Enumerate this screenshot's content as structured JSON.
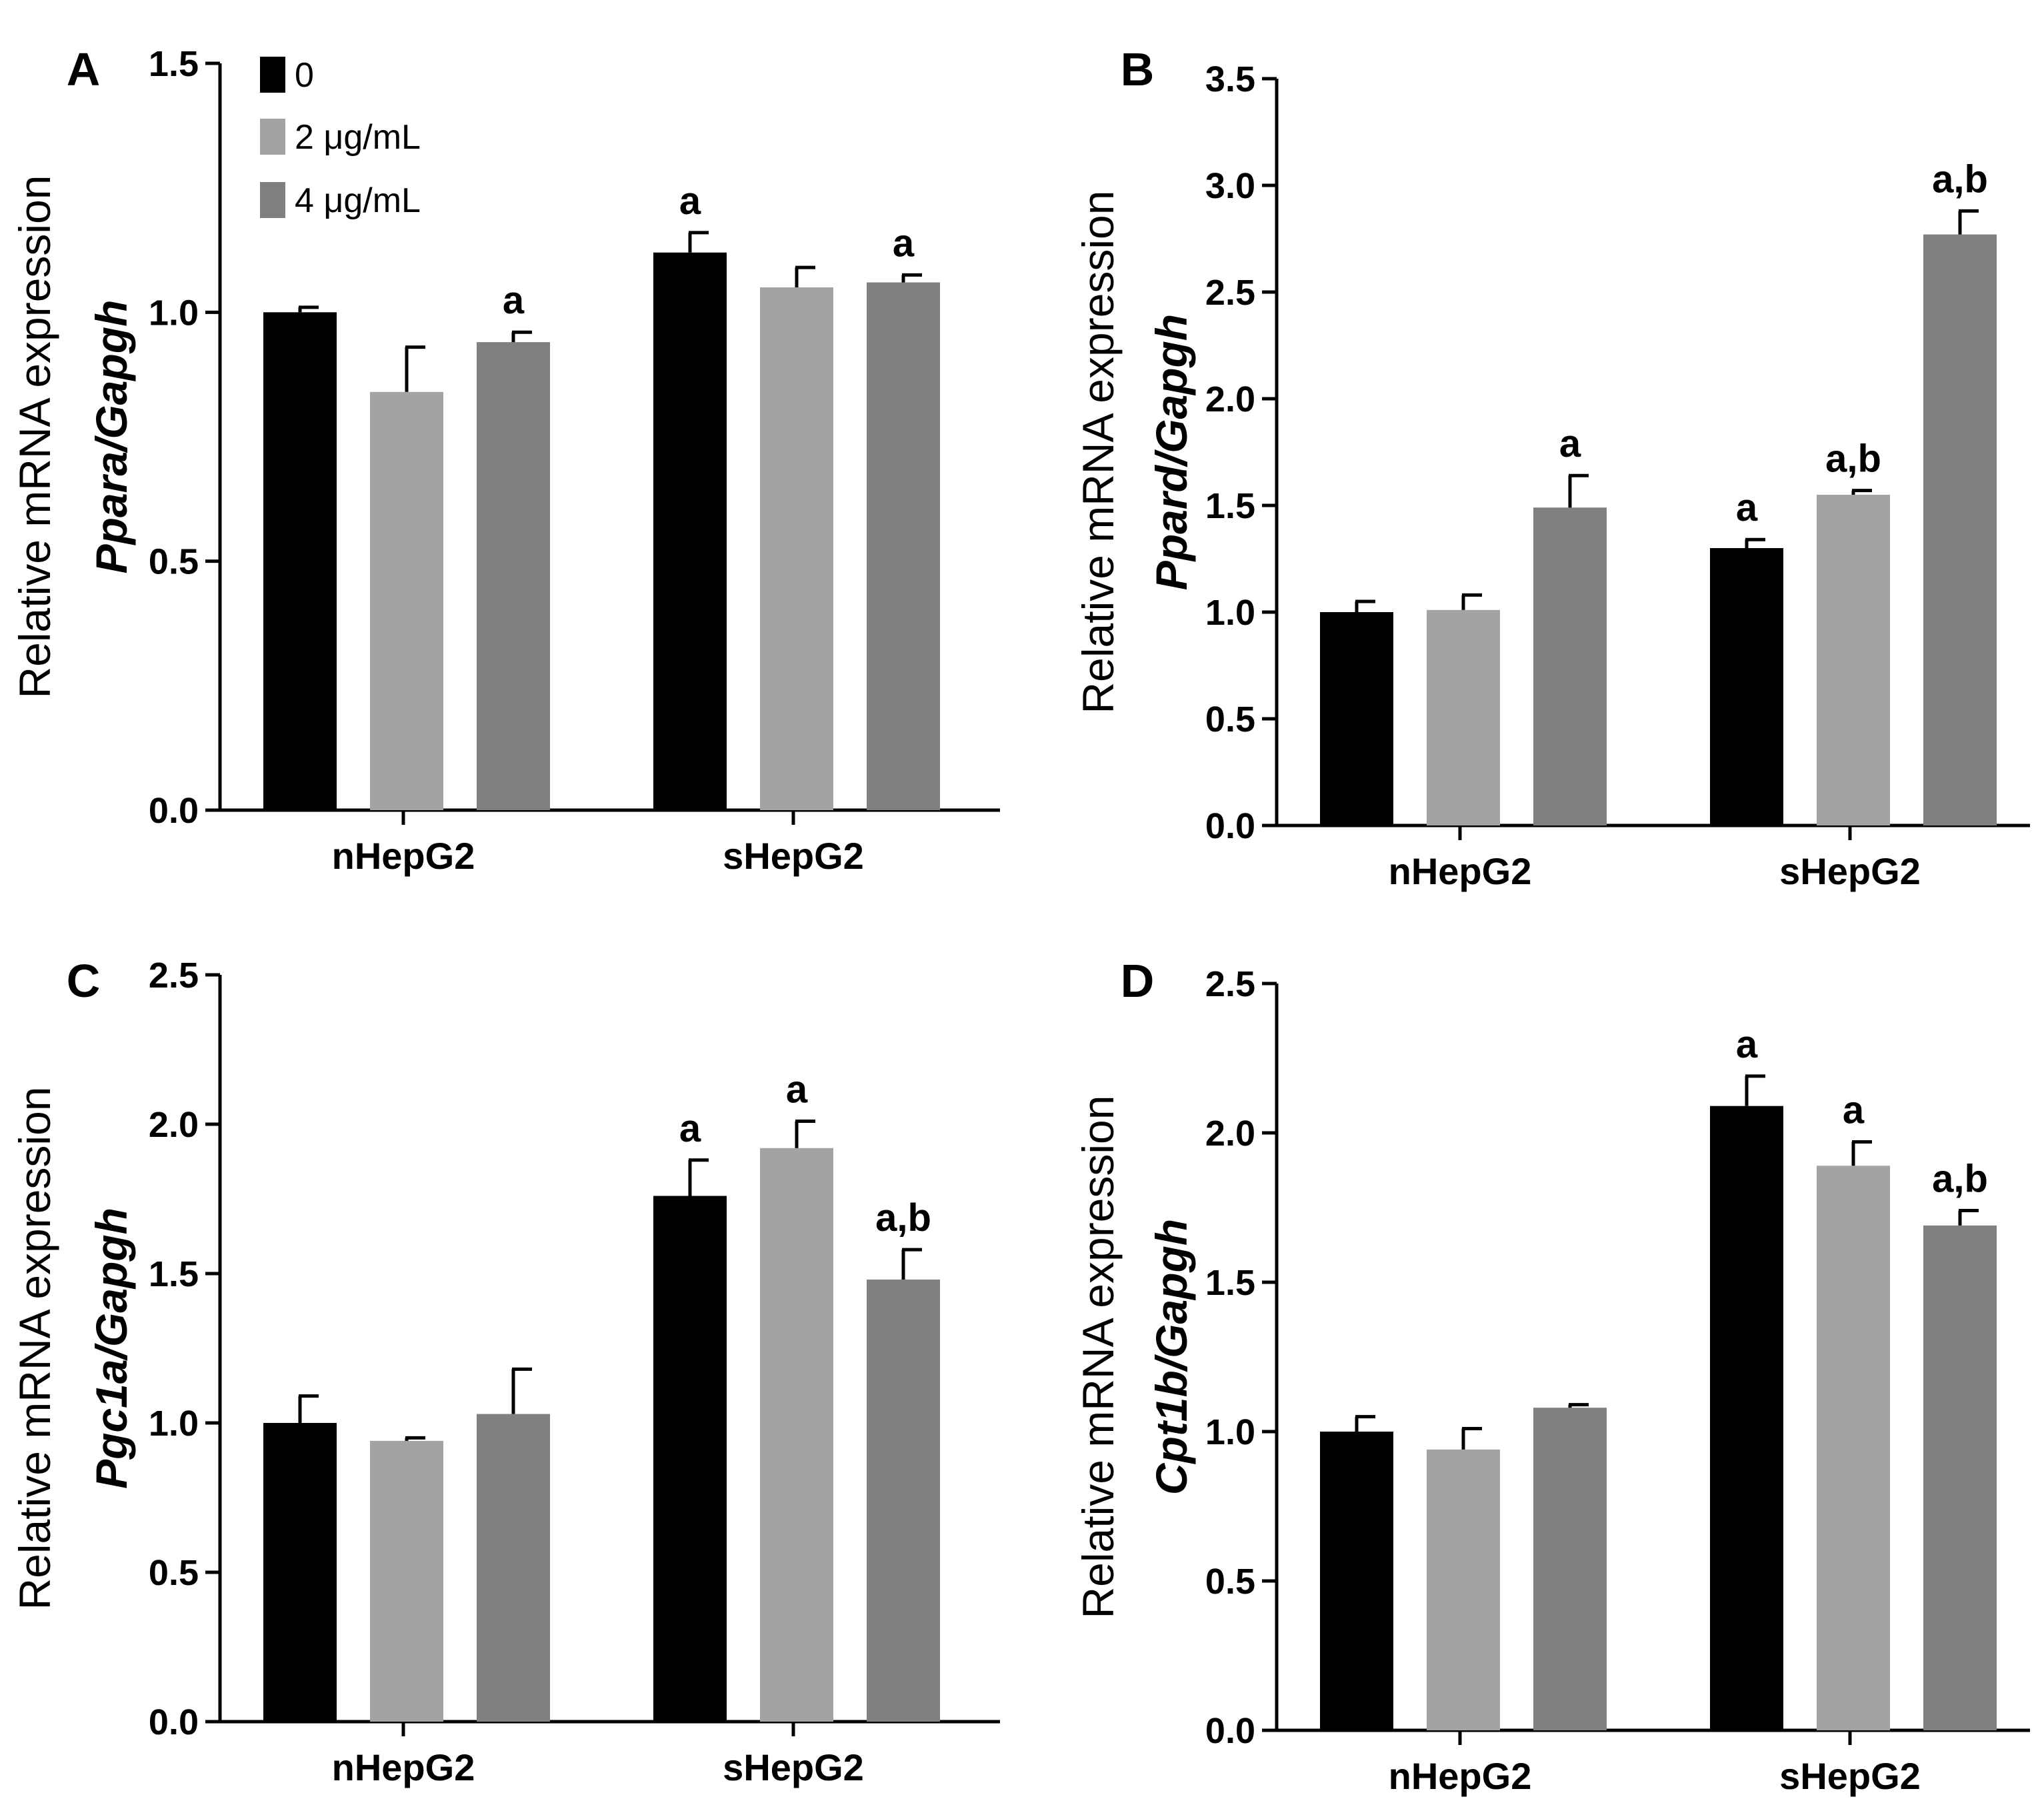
{
  "chart_data": [
    {
      "type": "bar",
      "panel": "A",
      "categories": [
        "nHepG2",
        "sHepG2"
      ],
      "series": [
        {
          "name": "0",
          "color": "#000000",
          "values": [
            1.0,
            1.12
          ],
          "errors": [
            0.01,
            0.04
          ],
          "sig": [
            "",
            "a"
          ]
        },
        {
          "name": "2 μg/mL",
          "color": "#a3a3a6",
          "values": [
            0.84,
            1.05
          ],
          "errors": [
            0.09,
            0.04
          ],
          "sig": [
            "",
            ""
          ]
        },
        {
          "name": "4 μg/mL",
          "color": "#808080",
          "values": [
            0.94,
            1.06
          ],
          "errors": [
            0.02,
            0.015
          ],
          "sig": [
            "a",
            "a"
          ]
        }
      ],
      "ylabel_line1": "Relative mRNA expression",
      "ylabel_line2": "Ppara/Gapgh",
      "ylim": [
        0,
        1.5
      ],
      "yticks": [
        "0.0",
        "0.5",
        "1.0",
        "1.5"
      ],
      "legend": [
        "0",
        "2 μg/mL",
        "4 μg/mL"
      ]
    },
    {
      "type": "bar",
      "panel": "B",
      "categories": [
        "nHepG2",
        "sHepG2"
      ],
      "series": [
        {
          "name": "0",
          "color": "#000000",
          "values": [
            1.0,
            1.3
          ],
          "errors": [
            0.05,
            0.04
          ],
          "sig": [
            "",
            "a"
          ]
        },
        {
          "name": "2 μg/mL",
          "color": "#a3a3a6",
          "values": [
            1.01,
            1.55
          ],
          "errors": [
            0.07,
            0.02
          ],
          "sig": [
            "",
            "a,b"
          ]
        },
        {
          "name": "4 μg/mL",
          "color": "#808080",
          "values": [
            1.49,
            2.77
          ],
          "errors": [
            0.15,
            0.11
          ],
          "sig": [
            "a",
            "a,b"
          ]
        }
      ],
      "ylabel_line1": "Relative mRNA expression",
      "ylabel_line2": "Ppard/Gapgh",
      "ylim": [
        0,
        3.5
      ],
      "yticks": [
        "0.0",
        "0.5",
        "1.0",
        "1.5",
        "2.0",
        "2.5",
        "3.0",
        "3.5"
      ]
    },
    {
      "type": "bar",
      "panel": "C",
      "categories": [
        "nHepG2",
        "sHepG2"
      ],
      "series": [
        {
          "name": "0",
          "color": "#000000",
          "values": [
            1.0,
            1.76
          ],
          "errors": [
            0.09,
            0.12
          ],
          "sig": [
            "",
            "a"
          ]
        },
        {
          "name": "2 μg/mL",
          "color": "#a3a3a6",
          "values": [
            0.94,
            1.92
          ],
          "errors": [
            0.01,
            0.09
          ],
          "sig": [
            "",
            "a"
          ]
        },
        {
          "name": "4 μg/mL",
          "color": "#808080",
          "values": [
            1.03,
            1.48
          ],
          "errors": [
            0.15,
            0.1
          ],
          "sig": [
            "",
            "a,b"
          ]
        }
      ],
      "ylabel_line1": "Relative mRNA expression",
      "ylabel_line2": "Pgc1a/Gapgh",
      "ylim": [
        0,
        2.5
      ],
      "yticks": [
        "0.0",
        "0.5",
        "1.0",
        "1.5",
        "2.0",
        "2.5"
      ]
    },
    {
      "type": "bar",
      "panel": "D",
      "categories": [
        "nHepG2",
        "sHepG2"
      ],
      "series": [
        {
          "name": "0",
          "color": "#000000",
          "values": [
            1.0,
            2.09
          ],
          "errors": [
            0.05,
            0.1
          ],
          "sig": [
            "",
            "a"
          ]
        },
        {
          "name": "2 μg/mL",
          "color": "#a3a3a6",
          "values": [
            0.94,
            1.89
          ],
          "errors": [
            0.07,
            0.08
          ],
          "sig": [
            "",
            "a"
          ]
        },
        {
          "name": "4 μg/mL",
          "color": "#808080",
          "values": [
            1.08,
            1.69
          ],
          "errors": [
            0.01,
            0.05
          ],
          "sig": [
            "",
            "a,b"
          ]
        }
      ],
      "ylabel_line1": "Relative mRNA expression",
      "ylabel_line2": "Cpt1b/Gapgh",
      "ylim": [
        0,
        2.5
      ],
      "yticks": [
        "0.0",
        "0.5",
        "1.0",
        "1.5",
        "2.0",
        "2.5"
      ]
    }
  ]
}
